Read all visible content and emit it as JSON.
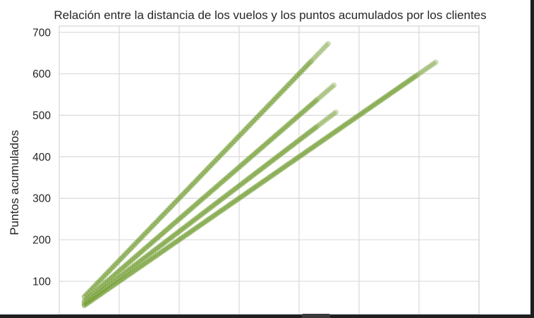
{
  "chart_data": {
    "type": "scatter",
    "title": "Relación entre la distancia de los vuelos y los puntos acumulados por los clientes",
    "xlabel": "",
    "ylabel": "Puntos acumulados",
    "xlim": [
      0,
      7000
    ],
    "ylim": [
      20,
      715
    ],
    "x_gridlines": [
      1000,
      2000,
      3000,
      4000,
      5000,
      6000,
      7000
    ],
    "yticks": [
      100,
      200,
      300,
      400,
      500,
      600,
      700
    ],
    "grid": true,
    "marker_color": "#6f9a2e",
    "series": [
      {
        "slope": 0.15,
        "x_end": 4500
      },
      {
        "slope": 0.125,
        "x_end": 4600
      },
      {
        "slope": 0.11,
        "x_end": 4620
      },
      {
        "slope": 0.1,
        "x_end": 6280
      }
    ]
  }
}
